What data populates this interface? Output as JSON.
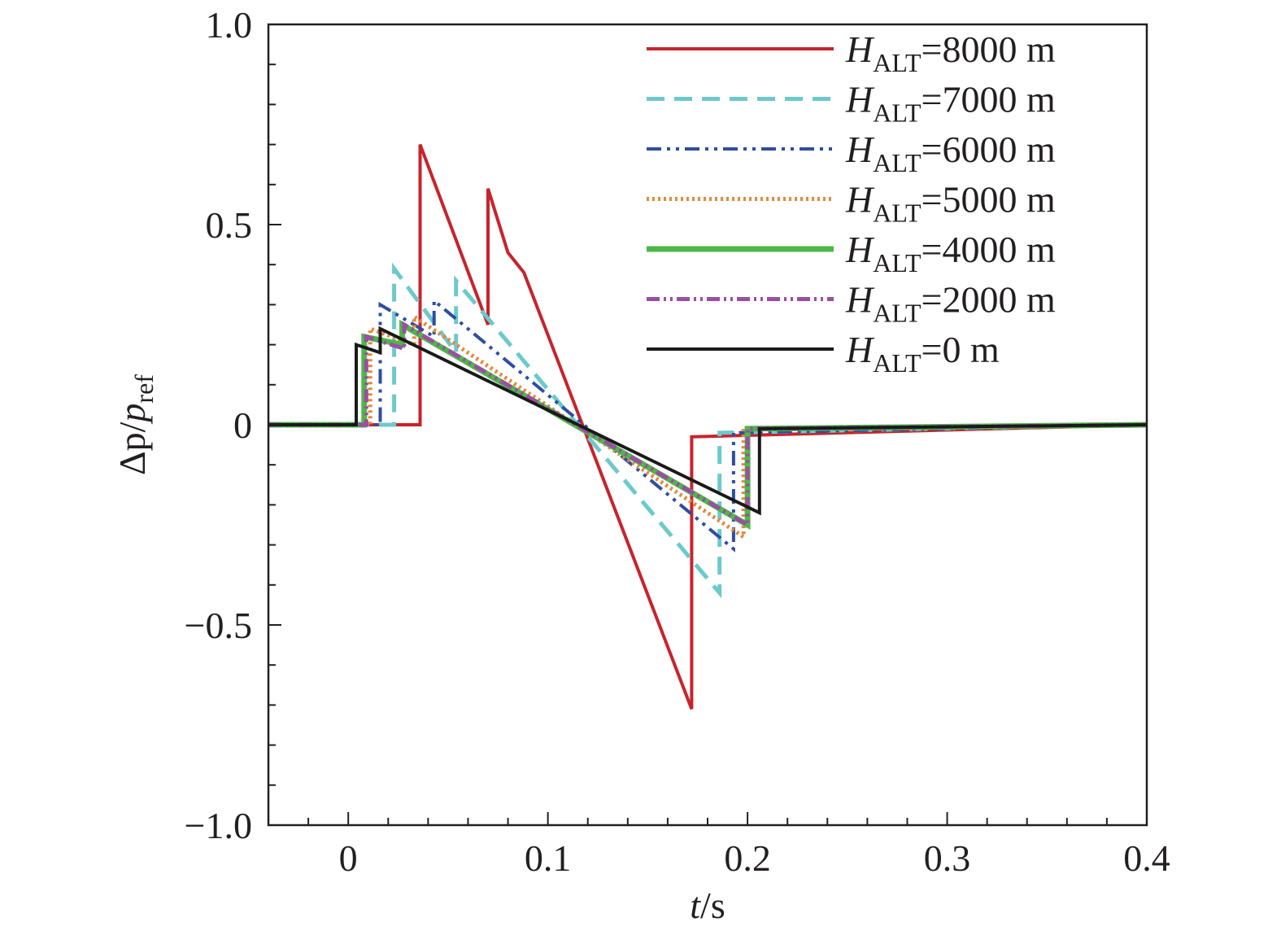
{
  "chart_data": {
    "type": "line",
    "xlabel": {
      "var": "t",
      "unit": "/s"
    },
    "ylabel": {
      "num": "Δp",
      "sep": "/",
      "den": "p",
      "den_sub": "ref"
    },
    "xlim": [
      -0.04,
      0.4
    ],
    "ylim": [
      -1.0,
      1.0
    ],
    "xticks": [
      0,
      0.1,
      0.2,
      0.3,
      0.4
    ],
    "xtick_labels": [
      "0",
      "0.1",
      "0.2",
      "0.3",
      "0.4"
    ],
    "yticks": [
      -1.0,
      -0.5,
      0,
      0.5,
      1.0
    ],
    "ytick_labels": [
      "−1.0",
      "−0.5",
      "0",
      "0.5",
      "1.0"
    ],
    "grid": false,
    "legend_position": "top-right",
    "series": [
      {
        "name": "H_ALT=8000 m",
        "legend": {
          "var": "H",
          "sub": "ALT",
          "rest": "=8000 m"
        },
        "color": "#c8232c",
        "dash": "",
        "width": 4,
        "points": [
          [
            -0.04,
            0
          ],
          [
            0.036,
            0
          ],
          [
            0.036,
            0.7
          ],
          [
            0.07,
            0.25
          ],
          [
            0.07,
            0.59
          ],
          [
            0.08,
            0.43
          ],
          [
            0.088,
            0.38
          ],
          [
            0.172,
            -0.71
          ],
          [
            0.172,
            -0.03
          ],
          [
            0.4,
            0
          ]
        ]
      },
      {
        "name": "H_ALT=7000 m",
        "legend": {
          "var": "H",
          "sub": "ALT",
          "rest": "=7000 m"
        },
        "color": "#6cc9cc",
        "dash": "22,12",
        "width": 5,
        "points": [
          [
            -0.04,
            0
          ],
          [
            0.023,
            0
          ],
          [
            0.023,
            0.39
          ],
          [
            0.054,
            0.18
          ],
          [
            0.054,
            0.36
          ],
          [
            0.186,
            -0.42
          ],
          [
            0.186,
            -0.02
          ],
          [
            0.4,
            0
          ]
        ]
      },
      {
        "name": "H_ALT=6000 m",
        "legend": {
          "var": "H",
          "sub": "ALT",
          "rest": "=6000 m"
        },
        "color": "#2f4e9f",
        "dash": "18,7,4,7,4,7",
        "width": 4,
        "points": [
          [
            -0.04,
            0
          ],
          [
            0.016,
            0
          ],
          [
            0.016,
            0.3
          ],
          [
            0.043,
            0.22
          ],
          [
            0.043,
            0.31
          ],
          [
            0.193,
            -0.31
          ],
          [
            0.193,
            -0.02
          ],
          [
            0.4,
            0
          ]
        ]
      },
      {
        "name": "H_ALT=5000 m",
        "legend": {
          "var": "H",
          "sub": "ALT",
          "rest": "=5000 m"
        },
        "color": "#e08a3c",
        "dash": "3,4",
        "width": 5,
        "points": [
          [
            -0.04,
            0
          ],
          [
            0.011,
            0
          ],
          [
            0.011,
            0.24
          ],
          [
            0.033,
            0.2
          ],
          [
            0.033,
            0.27
          ],
          [
            0.198,
            -0.28
          ],
          [
            0.198,
            -0.01
          ],
          [
            0.4,
            0
          ]
        ]
      },
      {
        "name": "H_ALT=4000 m",
        "legend": {
          "var": "H",
          "sub": "ALT",
          "rest": "=4000 m"
        },
        "color": "#4db848",
        "dash": "",
        "width": 7,
        "points": [
          [
            -0.04,
            0
          ],
          [
            0.008,
            0
          ],
          [
            0.008,
            0.22
          ],
          [
            0.027,
            0.2
          ],
          [
            0.027,
            0.25
          ],
          [
            0.2,
            -0.25
          ],
          [
            0.2,
            -0.01
          ],
          [
            0.4,
            0
          ]
        ]
      },
      {
        "name": "H_ALT=2000 m",
        "legend": {
          "var": "H",
          "sub": "ALT",
          "rest": "=2000 m"
        },
        "color": "#9b4ea2",
        "dash": "16,5,3,5,3,5",
        "width": 5,
        "points": [
          [
            -0.04,
            0
          ],
          [
            0.009,
            0
          ],
          [
            0.009,
            0.22
          ],
          [
            0.028,
            0.19
          ],
          [
            0.028,
            0.25
          ],
          [
            0.2,
            -0.25
          ],
          [
            0.2,
            -0.01
          ],
          [
            0.4,
            0
          ]
        ]
      },
      {
        "name": "H_ALT=0 m",
        "legend": {
          "var": "H",
          "sub": "ALT",
          "rest": "=0 m"
        },
        "color": "#1a1a1a",
        "dash": "",
        "width": 4,
        "points": [
          [
            -0.04,
            0
          ],
          [
            0.004,
            0
          ],
          [
            0.004,
            0.2
          ],
          [
            0.016,
            0.18
          ],
          [
            0.016,
            0.24
          ],
          [
            0.206,
            -0.22
          ],
          [
            0.206,
            -0.01
          ],
          [
            0.4,
            0
          ]
        ]
      }
    ]
  }
}
